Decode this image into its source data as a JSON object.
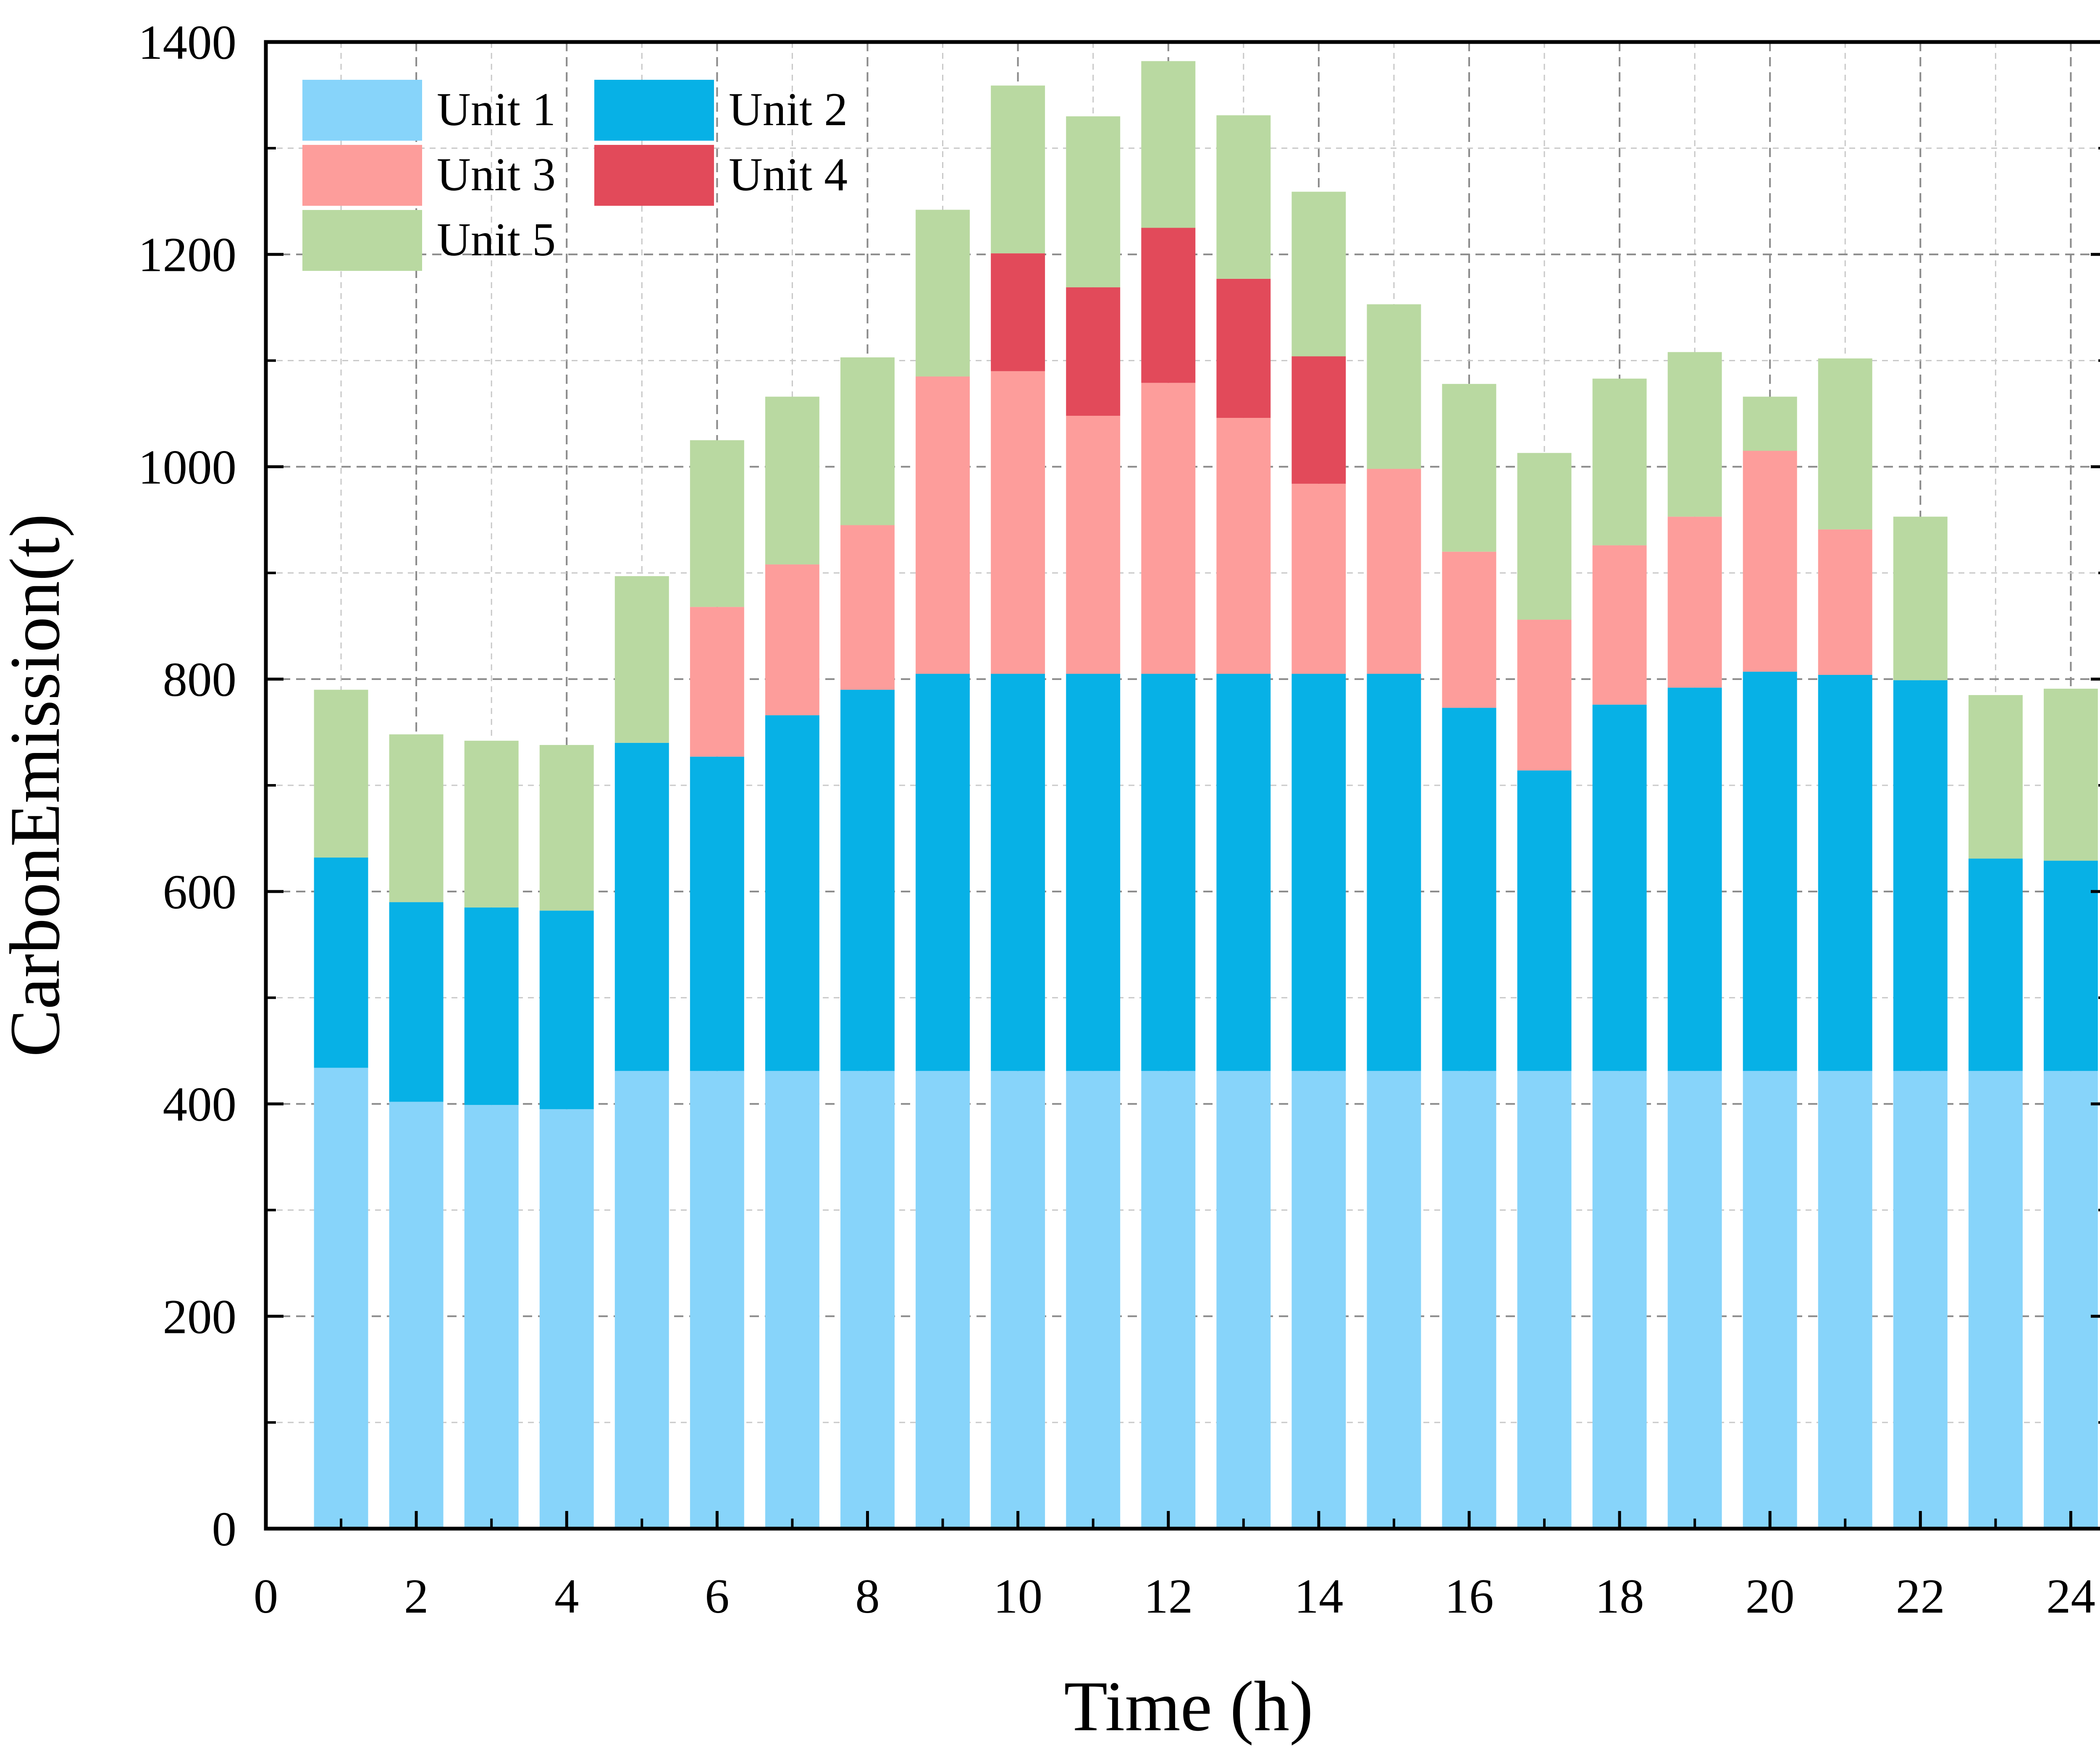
{
  "chart_data": {
    "type": "bar",
    "stacked": true,
    "title": "",
    "xlabel": "Time (h)",
    "ylabel": "CarbonEmission(t)",
    "xlim": [
      0,
      24.5
    ],
    "ylim": [
      0,
      1400
    ],
    "xticks": [
      "0",
      "2",
      "4",
      "6",
      "8",
      "10",
      "12",
      "14",
      "16",
      "18",
      "20",
      "22",
      "24"
    ],
    "yticks": [
      "0",
      "200",
      "400",
      "600",
      "800",
      "1000",
      "1200",
      "1400"
    ],
    "grid": true,
    "legend_position": "top-left",
    "x": [
      1,
      2,
      3,
      4,
      5,
      6,
      7,
      8,
      9,
      10,
      11,
      12,
      13,
      14,
      15,
      16,
      17,
      18,
      19,
      20,
      21,
      22,
      23,
      24
    ],
    "series": [
      {
        "name": "Unit 1",
        "color": "#87D4FA",
        "values": [
          434,
          402,
          399,
          395,
          431,
          431,
          431,
          431,
          431,
          431,
          431,
          431,
          431,
          431,
          431,
          431,
          431,
          431,
          431,
          431,
          431,
          431,
          431,
          431
        ]
      },
      {
        "name": "Unit 2",
        "color": "#07B1E6",
        "values": [
          198,
          188,
          186,
          187,
          309,
          296,
          335,
          359,
          374,
          374,
          374,
          374,
          374,
          374,
          374,
          342,
          283,
          345,
          361,
          376,
          373,
          368,
          200,
          198
        ]
      },
      {
        "name": "Unit 3",
        "color": "#FD9D9B",
        "values": [
          0,
          0,
          0,
          0,
          0,
          141,
          142,
          155,
          280,
          285,
          243,
          274,
          241,
          179,
          193,
          147,
          142,
          150,
          161,
          208,
          137,
          0,
          0,
          0
        ]
      },
      {
        "name": "Unit 4",
        "color": "#E24A5A",
        "values": [
          0,
          0,
          0,
          0,
          0,
          0,
          0,
          0,
          0,
          111,
          121,
          146,
          131,
          120,
          0,
          0,
          0,
          0,
          0,
          0,
          0,
          0,
          0,
          0
        ]
      },
      {
        "name": "Unit 5",
        "color": "#B9D9A1",
        "values": [
          158,
          158,
          157,
          156,
          157,
          157,
          158,
          158,
          157,
          158,
          161,
          157,
          154,
          155,
          155,
          158,
          157,
          157,
          155,
          51,
          161,
          154,
          154,
          162
        ]
      }
    ]
  }
}
